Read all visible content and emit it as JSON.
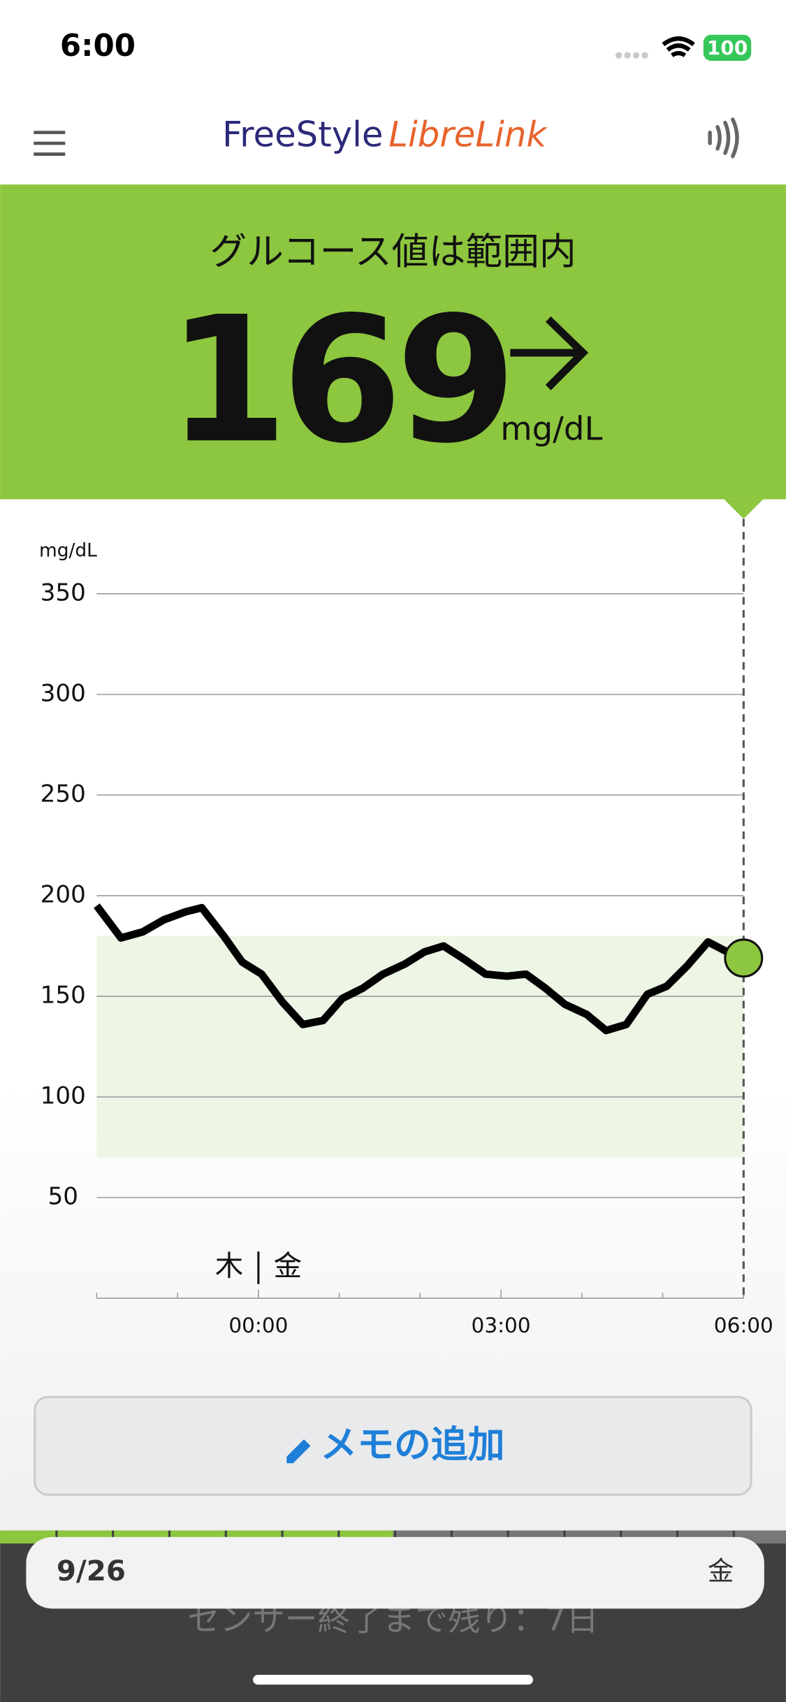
{
  "status_bar": {
    "time": "6:00",
    "battery": "100"
  },
  "header": {
    "brand_1": "FreeStyle",
    "brand_2": "LibreLink"
  },
  "reading": {
    "status": "グルコース値は範囲内",
    "value": 169,
    "unit": "mg/dL"
  },
  "chart_data": {
    "type": "line",
    "y_label": "mg/dL",
    "x": [
      -2,
      -1.7,
      -1.43,
      -1.17,
      -0.9,
      -0.7,
      -0.43,
      -0.2,
      0.04,
      0.3,
      0.55,
      0.8,
      1.04,
      1.29,
      1.54,
      1.81,
      2.05,
      2.29,
      2.56,
      2.81,
      3.07,
      3.31,
      3.55,
      3.79,
      4.06,
      4.3,
      4.55,
      4.81,
      5.05,
      5.3,
      5.56,
      5.8,
      6
    ],
    "series": [
      {
        "color": "#000000",
        "values": [
          195,
          179,
          182,
          188,
          192,
          194,
          180,
          167,
          161,
          147,
          136,
          138,
          149,
          154,
          161,
          166,
          172,
          175,
          168,
          161,
          160,
          161,
          154,
          146,
          141,
          133,
          136,
          151,
          155,
          165,
          177,
          172,
          169
        ]
      }
    ],
    "marker_color": "#8dc63f",
    "target_range": [
      70,
      180
    ],
    "target_color": "#edf6e5",
    "ylim": [
      0,
      350
    ],
    "yticks": [
      50,
      100,
      150,
      200,
      250,
      300,
      350
    ],
    "xlim": [
      -2,
      6
    ],
    "xticks": [
      {
        "value": 0,
        "label": "00:00"
      },
      {
        "value": 3,
        "label": "03:00"
      },
      {
        "value": 6,
        "label": "06:00"
      }
    ],
    "xminor_ticks": [
      -2,
      -1,
      1,
      2,
      4,
      5
    ],
    "day_labels": [
      "木",
      "金"
    ],
    "day_boundary": 0,
    "grid": true
  },
  "memo_button": "メモの追加",
  "date_bar": {
    "date": "9/26",
    "weekday": "金"
  },
  "sensor_notice": "センサー終了まで残り：7日"
}
